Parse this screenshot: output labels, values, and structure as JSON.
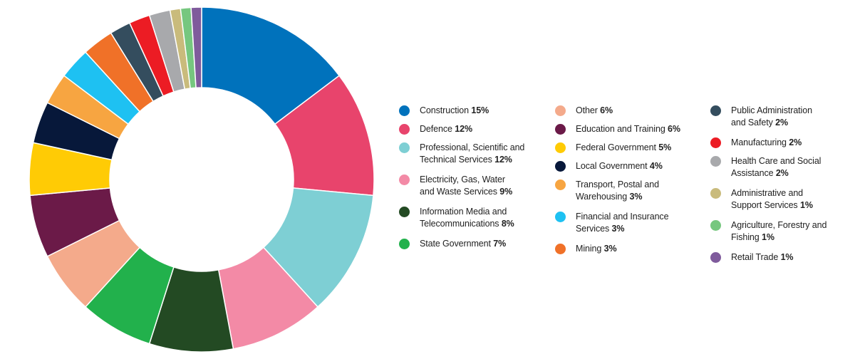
{
  "chart_data": {
    "type": "pie",
    "subtype": "donut",
    "slices": [
      {
        "label": "Construction",
        "value": 15,
        "value_label": "15%",
        "color": "#0072bc"
      },
      {
        "label": "Defence",
        "value": 12,
        "value_label": "12%",
        "color": "#e8446c"
      },
      {
        "label": "Professional, Scientific and Technical Services",
        "value": 12,
        "value_label": "12%",
        "color": "#7ecfd4"
      },
      {
        "label": "Electricity, Gas, Water and Waste Services",
        "value": 9,
        "value_label": "9%",
        "color": "#f38aa6"
      },
      {
        "label": "Information Media and Telecommunications",
        "value": 8,
        "value_label": "8%",
        "color": "#234a23"
      },
      {
        "label": "State Government",
        "value": 7,
        "value_label": "7%",
        "color": "#22b14c"
      },
      {
        "label": "Other",
        "value": 6,
        "value_label": "6%",
        "color": "#f4aa8b"
      },
      {
        "label": "Education and Training",
        "value": 6,
        "value_label": "6%",
        "color": "#6b1a48"
      },
      {
        "label": "Federal Government",
        "value": 5,
        "value_label": "5%",
        "color": "#ffcb05"
      },
      {
        "label": "Local Government",
        "value": 4,
        "value_label": "4%",
        "color": "#07183a"
      },
      {
        "label": "Transport, Postal and Warehousing",
        "value": 3,
        "value_label": "3%",
        "color": "#f7a541"
      },
      {
        "label": "Financial and Insurance Services",
        "value": 3,
        "value_label": "3%",
        "color": "#1ec1f2"
      },
      {
        "label": "Mining",
        "value": 3,
        "value_label": "3%",
        "color": "#f07128"
      },
      {
        "label": "Public Administration and Safety",
        "value": 2,
        "value_label": "2%",
        "color": "#344d5e"
      },
      {
        "label": "Manufacturing",
        "value": 2,
        "value_label": "2%",
        "color": "#ec1c24"
      },
      {
        "label": "Health Care and Social Assistance",
        "value": 2,
        "value_label": "2%",
        "color": "#a8a9ac"
      },
      {
        "label": "Administrative and Support Services",
        "value": 1,
        "value_label": "1%",
        "color": "#c9bb7c"
      },
      {
        "label": "Agriculture, Forestry and Fishing",
        "value": 1,
        "value_label": "1%",
        "color": "#76c77f"
      },
      {
        "label": "Retail Trade",
        "value": 1,
        "value_label": "1%",
        "color": "#7f5b9c"
      }
    ],
    "title": "",
    "legend_position": "right",
    "legend": {
      "columns": [
        [
          {
            "line1": "Construction",
            "value": "15%"
          },
          {
            "line1": "Defence",
            "value": "12%"
          },
          {
            "line1": "Professional, Scientific and",
            "line2": "Technical Services",
            "value": "12%"
          },
          {
            "line1": "Electricity, Gas, Water",
            "line2": "and Waste Services",
            "value": "9%"
          },
          {
            "line1": "Information Media and",
            "line2": "Telecommunications",
            "value": "8%"
          },
          {
            "line1": "State Government",
            "value": "7%"
          }
        ],
        [
          {
            "line1": "Other",
            "value": "6%"
          },
          {
            "line1": "Education and Training",
            "value": "6%"
          },
          {
            "line1": "Federal Government",
            "value": "5%"
          },
          {
            "line1": "Local Government",
            "value": "4%"
          },
          {
            "line1": "Transport, Postal and",
            "line2": "Warehousing",
            "value": "3%"
          },
          {
            "line1": "Financial and Insurance",
            "line2": "Services",
            "value": "3%"
          },
          {
            "line1": "Mining",
            "value": "3%"
          }
        ],
        [
          {
            "line1": "Public Administration",
            "line2": "and Safety",
            "value": "2%"
          },
          {
            "line1": "Manufacturing",
            "value": "2%"
          },
          {
            "line1": "Health Care and Social",
            "line2": "Assistance",
            "value": "2%"
          },
          {
            "line1": "Administrative and",
            "line2": "Support Services",
            "value": "1%"
          },
          {
            "line1": "Agriculture, Forestry and",
            "line2": "Fishing",
            "value": "1%"
          },
          {
            "line1": "Retail Trade",
            "value": "1%"
          }
        ]
      ]
    }
  }
}
